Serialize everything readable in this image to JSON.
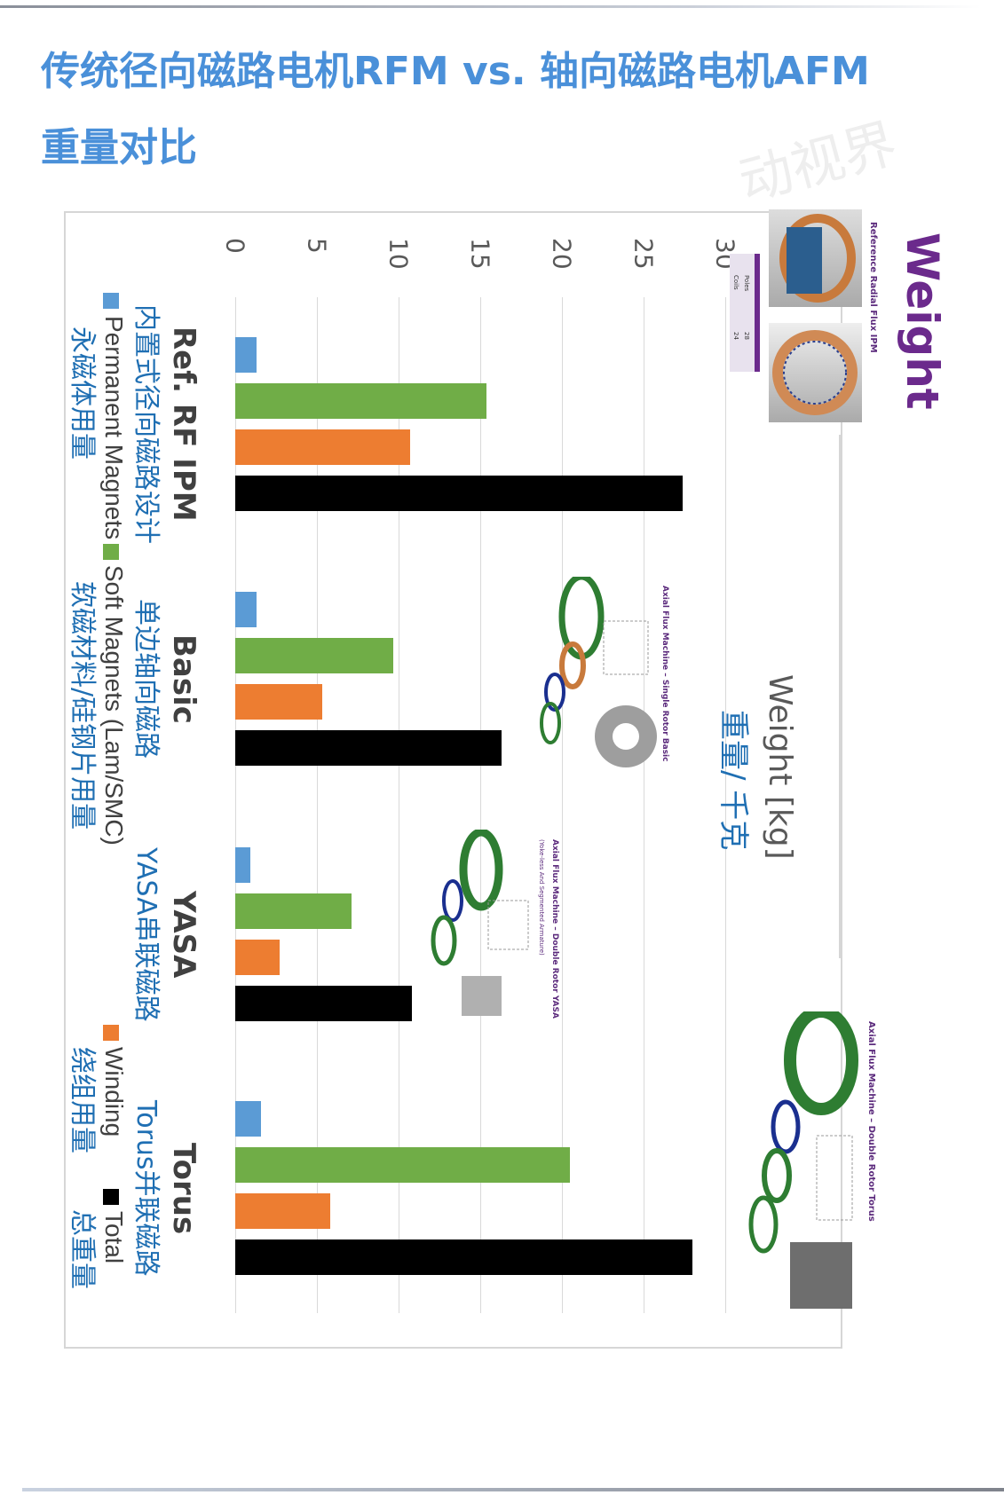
{
  "title": {
    "line1": "传统径向磁路电机RFM vs. 轴向磁路电机AFM",
    "line2": "重量对比"
  },
  "watermark": "动视界",
  "inset": {
    "logo": "Weight",
    "ref_caption": "Reference Radial Flux IPM",
    "table": {
      "poles_label": "Poles",
      "poles_value": "28",
      "coils_label": "Coils",
      "coils_value": "24"
    },
    "basic_caption": "Axial Flux Machine – Single Rotor Basic",
    "yasa_caption": "Axial Flux Machine – Double Rotor YASA",
    "yasa_subcaption": "(Yoke-less And Segmented Armature)",
    "torus_caption": "Axial Flux Machine – Double Rotor Torus"
  },
  "chart_data": {
    "type": "bar",
    "orientation": "rotated 90° clockwise (horizontal bars)",
    "title": "",
    "ylabel": "Weight [kg]",
    "ylabel_zh": "重量/ 千克",
    "ylim": [
      0,
      30
    ],
    "yticks": [
      "0",
      "5",
      "10",
      "15",
      "20",
      "25",
      "30"
    ],
    "grid": true,
    "legend_position": "bottom",
    "categories": [
      "Ref. RF IPM",
      "Basic",
      "YASA",
      "Torus"
    ],
    "categories_zh": [
      "内置式径向磁路设计",
      "单边轴向磁路",
      "YASA串联磁路",
      "Torus并联磁路"
    ],
    "series": [
      {
        "name": "Permanent Magnets",
        "name_zh": "永磁体用量",
        "color": "#5b9bd5",
        "values": [
          1.3,
          1.3,
          0.9,
          1.6
        ]
      },
      {
        "name": "Soft Magnets (Lam/SMC)",
        "name_zh": "软磁材料/硅钢片用量",
        "color": "#70ad47",
        "values": [
          15.4,
          9.7,
          7.1,
          20.5
        ]
      },
      {
        "name": "Winding",
        "name_zh": "绕组用量",
        "color": "#ed7d31",
        "values": [
          10.7,
          5.3,
          2.7,
          5.8
        ]
      },
      {
        "name": "Total",
        "name_zh": "总重量",
        "color": "#000000",
        "values": [
          27.4,
          16.3,
          10.8,
          28.0
        ]
      }
    ]
  }
}
